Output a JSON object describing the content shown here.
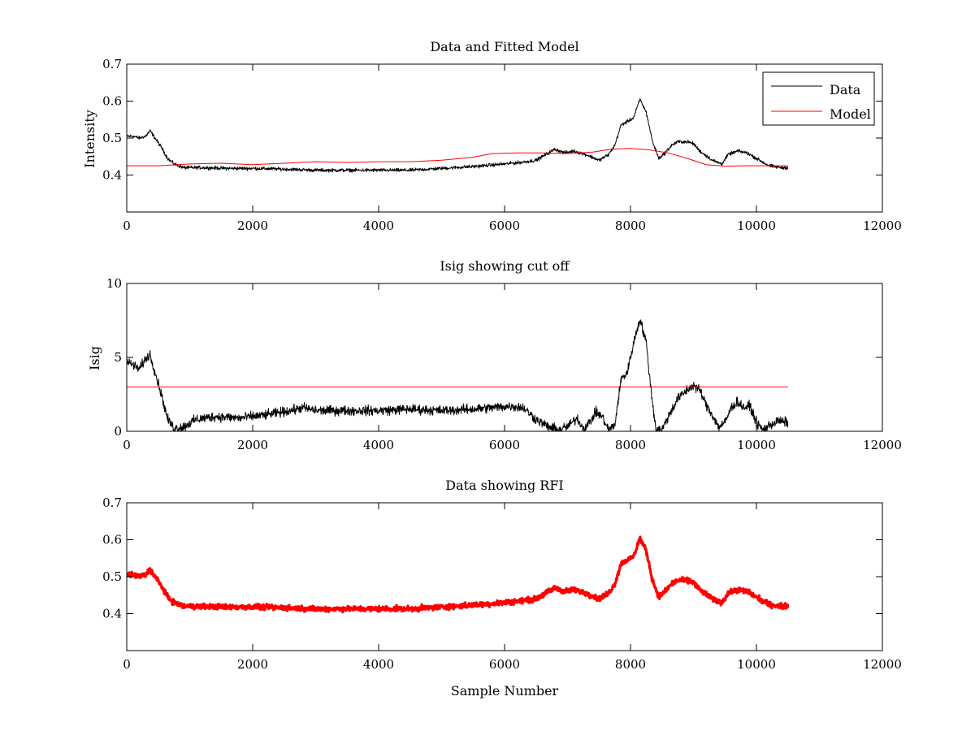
{
  "figure": {
    "background": "#ffffff"
  },
  "chart_data": [
    {
      "type": "line",
      "title": "Data and Fitted Model",
      "xlabel": "",
      "ylabel": "Intensity",
      "xlim": [
        0,
        12000
      ],
      "ylim": [
        0.3,
        0.7
      ],
      "xticks": [
        "0",
        "2000",
        "4000",
        "6000",
        "8000",
        "10000",
        "12000"
      ],
      "yticks": [
        "0.4",
        "0.5",
        "0.6",
        "0.7"
      ],
      "grid": false,
      "legend": {
        "placement": "top-right",
        "entries": [
          "Data",
          "Model"
        ]
      },
      "series": [
        {
          "name": "Data",
          "color": "#000000",
          "noise": 0.004,
          "x": [
            0,
            100,
            200,
            300,
            370,
            450,
            550,
            650,
            750,
            900,
            1200,
            1600,
            2000,
            2500,
            3000,
            3500,
            4000,
            4500,
            5000,
            5500,
            6000,
            6300,
            6500,
            6650,
            6800,
            6950,
            7100,
            7300,
            7500,
            7650,
            7750,
            7850,
            7950,
            8050,
            8150,
            8250,
            8350,
            8450,
            8550,
            8650,
            8750,
            8900,
            9000,
            9100,
            9300,
            9450,
            9550,
            9700,
            9850,
            10000,
            10200,
            10400,
            10500
          ],
          "y": [
            0.505,
            0.505,
            0.5,
            0.505,
            0.52,
            0.5,
            0.475,
            0.445,
            0.43,
            0.42,
            0.42,
            0.418,
            0.418,
            0.416,
            0.413,
            0.413,
            0.413,
            0.413,
            0.418,
            0.423,
            0.43,
            0.435,
            0.44,
            0.455,
            0.47,
            0.46,
            0.465,
            0.455,
            0.44,
            0.455,
            0.48,
            0.535,
            0.545,
            0.555,
            0.605,
            0.57,
            0.49,
            0.445,
            0.46,
            0.48,
            0.49,
            0.49,
            0.485,
            0.465,
            0.44,
            0.43,
            0.455,
            0.465,
            0.46,
            0.445,
            0.425,
            0.42,
            0.42
          ]
        },
        {
          "name": "Model",
          "color": "#ff0000",
          "noise": 0,
          "x": [
            0,
            500,
            1000,
            1500,
            2000,
            2500,
            3000,
            3500,
            4000,
            4500,
            5000,
            5500,
            5800,
            6200,
            6600,
            7000,
            7400,
            7700,
            8000,
            8300,
            8600,
            8900,
            9200,
            9500,
            9800,
            10100,
            10500
          ],
          "y": [
            0.425,
            0.425,
            0.43,
            0.432,
            0.428,
            0.432,
            0.436,
            0.434,
            0.436,
            0.436,
            0.44,
            0.448,
            0.458,
            0.46,
            0.46,
            0.458,
            0.462,
            0.47,
            0.472,
            0.468,
            0.46,
            0.445,
            0.428,
            0.424,
            0.425,
            0.425,
            0.425
          ]
        }
      ]
    },
    {
      "type": "line",
      "title": "Isig showing cut off",
      "xlabel": "",
      "ylabel": "Isig",
      "xlim": [
        0,
        12000
      ],
      "ylim": [
        0,
        10
      ],
      "xticks": [
        "0",
        "2000",
        "4000",
        "6000",
        "8000",
        "10000",
        "12000"
      ],
      "yticks": [
        "0",
        "5",
        "10"
      ],
      "grid": false,
      "series": [
        {
          "color": "#000000",
          "noise": 0.28,
          "x": [
            0,
            100,
            200,
            300,
            370,
            450,
            550,
            650,
            750,
            900,
            1100,
            1400,
            1800,
            2200,
            2600,
            2800,
            3000,
            3500,
            4000,
            4500,
            5000,
            5500,
            5800,
            6100,
            6300,
            6500,
            6700,
            6850,
            7000,
            7150,
            7250,
            7350,
            7450,
            7550,
            7650,
            7750,
            7850,
            7950,
            8050,
            8150,
            8250,
            8320,
            8400,
            8500,
            8600,
            8750,
            8900,
            9000,
            9100,
            9200,
            9300,
            9400,
            9500,
            9600,
            9700,
            9800,
            9900,
            10000,
            10100,
            10200,
            10350,
            10500
          ],
          "y": [
            4.7,
            4.5,
            4.2,
            4.9,
            5.2,
            4.0,
            2.5,
            0.8,
            0.2,
            0.3,
            0.8,
            1.0,
            0.9,
            1.1,
            1.4,
            1.6,
            1.4,
            1.4,
            1.4,
            1.5,
            1.4,
            1.5,
            1.6,
            1.7,
            1.6,
            0.8,
            0.3,
            0.1,
            0.3,
            0.9,
            0.2,
            0.6,
            1.3,
            1.0,
            0.1,
            0.4,
            3.5,
            4.0,
            6.0,
            7.6,
            6.0,
            3.0,
            0.2,
            0.1,
            1.0,
            2.2,
            2.8,
            3.1,
            2.8,
            1.8,
            1.1,
            0.3,
            0.6,
            1.6,
            2.0,
            1.6,
            1.7,
            0.6,
            0.1,
            0.4,
            0.7,
            0.6
          ]
        },
        {
          "color": "#ff0000",
          "noise": 0,
          "x": [
            0,
            10500
          ],
          "y": [
            3,
            3
          ]
        }
      ]
    },
    {
      "type": "line",
      "title": "Data showing RFI",
      "xlabel": "Sample Number",
      "ylabel": "",
      "xlim": [
        0,
        12000
      ],
      "ylim": [
        0.3,
        0.7
      ],
      "xticks": [
        "0",
        "2000",
        "4000",
        "6000",
        "8000",
        "10000",
        "12000"
      ],
      "yticks": [
        "0.4",
        "0.5",
        "0.6",
        "0.7"
      ],
      "grid": false,
      "series": [
        {
          "color": "#ff0000",
          "noise": 0.006,
          "thick": true,
          "x": [
            0,
            100,
            200,
            300,
            370,
            450,
            550,
            650,
            750,
            900,
            1200,
            1600,
            2000,
            2500,
            3000,
            3500,
            4000,
            4500,
            5000,
            5500,
            6000,
            6300,
            6500,
            6650,
            6800,
            6950,
            7100,
            7300,
            7500,
            7650,
            7750,
            7850,
            7950,
            8050,
            8150,
            8250,
            8350,
            8450,
            8550,
            8650,
            8750,
            8900,
            9000,
            9100,
            9300,
            9450,
            9550,
            9700,
            9850,
            10000,
            10200,
            10400,
            10500
          ],
          "y": [
            0.505,
            0.505,
            0.5,
            0.505,
            0.52,
            0.5,
            0.475,
            0.445,
            0.43,
            0.42,
            0.42,
            0.418,
            0.418,
            0.416,
            0.413,
            0.413,
            0.413,
            0.413,
            0.418,
            0.423,
            0.43,
            0.435,
            0.44,
            0.455,
            0.47,
            0.46,
            0.465,
            0.455,
            0.44,
            0.455,
            0.48,
            0.535,
            0.545,
            0.555,
            0.605,
            0.57,
            0.49,
            0.445,
            0.46,
            0.48,
            0.49,
            0.49,
            0.485,
            0.465,
            0.44,
            0.43,
            0.455,
            0.465,
            0.46,
            0.445,
            0.425,
            0.42,
            0.42
          ]
        }
      ]
    }
  ]
}
